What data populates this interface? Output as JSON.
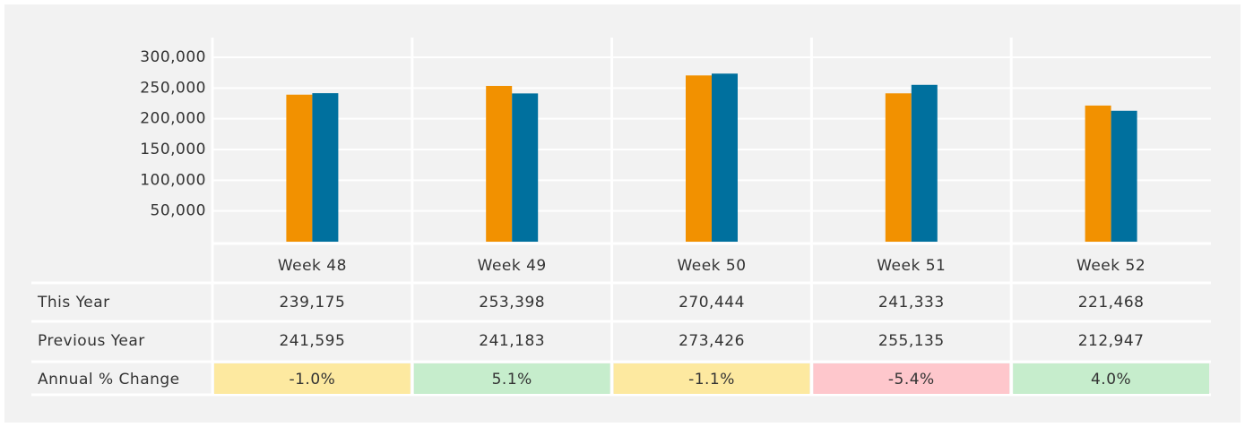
{
  "chart_data": {
    "type": "bar",
    "categories": [
      "Week 48",
      "Week 49",
      "Week 50",
      "Week 51",
      "Week 52"
    ],
    "series": [
      {
        "name": "This Year",
        "color": "#f29100",
        "values": [
          239175,
          253398,
          270444,
          241333,
          221468
        ],
        "value_labels": [
          "239,175",
          "253,398",
          "270,444",
          "241,333",
          "221,468"
        ]
      },
      {
        "name": "Previous Year",
        "color": "#00709e",
        "values": [
          241595,
          241183,
          273426,
          255135,
          212947
        ],
        "value_labels": [
          "241,595",
          "241,183",
          "273,426",
          "255,135",
          "212,947"
        ]
      }
    ],
    "annual_change": {
      "name": "Annual % Change",
      "values": [
        -1.0,
        5.1,
        -1.1,
        -5.4,
        4.0
      ],
      "value_labels": [
        "-1.0%",
        "5.1%",
        "-1.1%",
        "-5.4%",
        "4.0%"
      ],
      "colors": [
        "#fde9a0",
        "#c6edcc",
        "#fde9a0",
        "#fec7cc",
        "#c6edcc"
      ]
    },
    "ylim": [
      0,
      332000
    ],
    "yticks": [
      {
        "value": 50000,
        "label": "50,000"
      },
      {
        "value": 100000,
        "label": "100,000"
      },
      {
        "value": 150000,
        "label": "150,000"
      },
      {
        "value": 200000,
        "label": "200,000"
      },
      {
        "value": 250000,
        "label": "250,000"
      },
      {
        "value": 300000,
        "label": "300,000"
      }
    ],
    "grid": true
  }
}
